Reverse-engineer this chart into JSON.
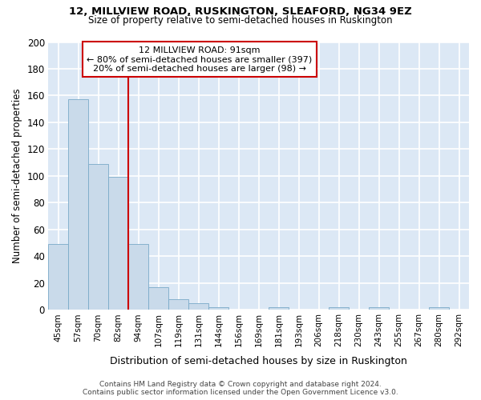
{
  "title1": "12, MILLVIEW ROAD, RUSKINGTON, SLEAFORD, NG34 9EZ",
  "title2": "Size of property relative to semi-detached houses in Ruskington",
  "xlabel": "Distribution of semi-detached houses by size in Ruskington",
  "ylabel": "Number of semi-detached properties",
  "categories": [
    "45sqm",
    "57sqm",
    "70sqm",
    "82sqm",
    "94sqm",
    "107sqm",
    "119sqm",
    "131sqm",
    "144sqm",
    "156sqm",
    "169sqm",
    "181sqm",
    "193sqm",
    "206sqm",
    "218sqm",
    "230sqm",
    "243sqm",
    "255sqm",
    "267sqm",
    "280sqm",
    "292sqm"
  ],
  "values": [
    49,
    157,
    109,
    99,
    49,
    17,
    8,
    5,
    2,
    0,
    0,
    2,
    0,
    0,
    2,
    0,
    2,
    0,
    0,
    2,
    0
  ],
  "bar_color": "#c9daea",
  "bar_edge_color": "#7aaac8",
  "property_index": 4,
  "vline_color": "#cc0000",
  "annotation_box_color": "#cc0000",
  "ylim": [
    0,
    200
  ],
  "yticks": [
    0,
    20,
    40,
    60,
    80,
    100,
    120,
    140,
    160,
    180,
    200
  ],
  "plot_bg_color": "#dce8f5",
  "fig_bg_color": "#ffffff",
  "grid_color": "#ffffff",
  "ann_line1": "12 MILLVIEW ROAD: 91sqm",
  "ann_line2": "← 80% of semi-detached houses are smaller (397)",
  "ann_line3": "20% of semi-detached houses are larger (98) →",
  "footer_text": "Contains HM Land Registry data © Crown copyright and database right 2024.\nContains public sector information licensed under the Open Government Licence v3.0."
}
